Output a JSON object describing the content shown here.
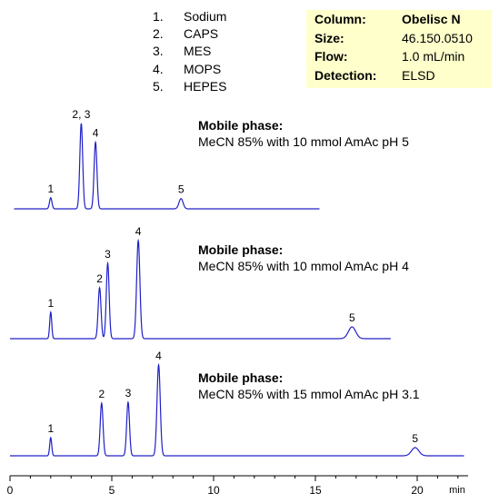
{
  "legend": [
    {
      "num": "1.",
      "name": "Sodium"
    },
    {
      "num": "2.",
      "name": "CAPS"
    },
    {
      "num": "3.",
      "name": "MES"
    },
    {
      "num": "4.",
      "name": "MOPS"
    },
    {
      "num": "5.",
      "name": "HEPES"
    }
  ],
  "info": [
    {
      "key": "Column:",
      "value": "Obelisc N"
    },
    {
      "key": "Size:",
      "value": "46.150.0510"
    },
    {
      "key": "Flow:",
      "value": "1.0 mL/min"
    },
    {
      "key": "Detection:",
      "value": "ELSD"
    }
  ],
  "colors": {
    "trace": "#2020c8",
    "info_bg": "#ffffcc",
    "axis": "#000000"
  },
  "chart_data": {
    "type": "line",
    "xlabel": "min",
    "xlim": [
      0,
      22.5
    ],
    "xticks": [
      "0",
      "5",
      "10",
      "15",
      "20"
    ],
    "series": [
      {
        "mobile_phase_title": "Mobile phase:",
        "mobile_phase": "MeCN 85% with 10 mmol AmAc pH 5",
        "x_end": 15.2,
        "peaks": [
          {
            "label": "1",
            "t": 2.0,
            "height": 0.13,
            "width": 0.06
          },
          {
            "label": "2, 3",
            "t": 3.5,
            "height": 1.0,
            "width": 0.07
          },
          {
            "label": "4",
            "t": 4.2,
            "height": 0.78,
            "width": 0.07
          },
          {
            "label": "5",
            "t": 8.4,
            "height": 0.12,
            "width": 0.1
          }
        ]
      },
      {
        "mobile_phase_title": "Mobile phase:",
        "mobile_phase": "MeCN 85% with 10 mmol AmAc pH 4",
        "x_end": 18.7,
        "peaks": [
          {
            "label": "1",
            "t": 2.0,
            "height": 0.27,
            "width": 0.05
          },
          {
            "label": "2",
            "t": 4.4,
            "height": 0.52,
            "width": 0.07
          },
          {
            "label": "3",
            "t": 4.8,
            "height": 0.77,
            "width": 0.07
          },
          {
            "label": "4",
            "t": 6.3,
            "height": 1.0,
            "width": 0.08
          },
          {
            "label": "5",
            "t": 16.8,
            "height": 0.12,
            "width": 0.18
          }
        ]
      },
      {
        "mobile_phase_title": "Mobile phase:",
        "mobile_phase": "MeCN 85% with 15 mmol AmAc pH 3.1",
        "x_end": 22.3,
        "peaks": [
          {
            "label": "1",
            "t": 2.0,
            "height": 0.2,
            "width": 0.05
          },
          {
            "label": "2",
            "t": 4.5,
            "height": 0.58,
            "width": 0.07
          },
          {
            "label": "3",
            "t": 5.8,
            "height": 0.59,
            "width": 0.07
          },
          {
            "label": "4",
            "t": 7.3,
            "height": 1.0,
            "width": 0.08
          },
          {
            "label": "5",
            "t": 19.9,
            "height": 0.09,
            "width": 0.18
          }
        ]
      }
    ]
  }
}
